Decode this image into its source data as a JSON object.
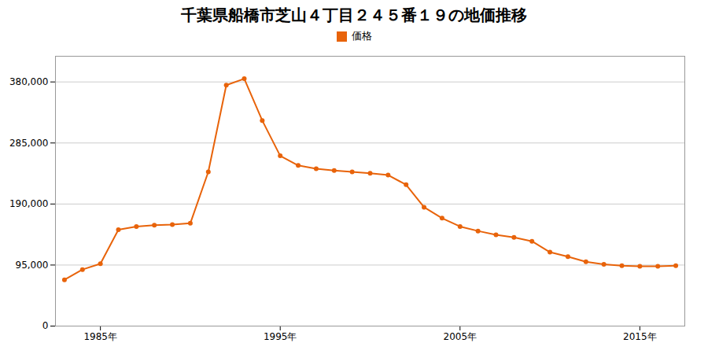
{
  "chart_data": {
    "type": "line",
    "title": "千葉県船橋市芝山４丁目２４５番１９の地価推移",
    "x": [
      1983,
      1984,
      1985,
      1986,
      1987,
      1988,
      1989,
      1990,
      1991,
      1992,
      1993,
      1994,
      1995,
      1996,
      1997,
      1998,
      1999,
      2000,
      2001,
      2002,
      2003,
      2004,
      2005,
      2006,
      2007,
      2008,
      2009,
      2010,
      2011,
      2012,
      2013,
      2014,
      2015,
      2016,
      2017
    ],
    "series": [
      {
        "name": "価格",
        "color": "#e8630a",
        "marker": "circle",
        "values": [
          72000,
          88000,
          97000,
          150000,
          155000,
          157000,
          158000,
          160000,
          240000,
          375000,
          385000,
          320000,
          265000,
          250000,
          245000,
          242000,
          240000,
          238000,
          235000,
          220000,
          185000,
          168000,
          155000,
          148000,
          142000,
          138000,
          132000,
          115000,
          108000,
          100000,
          96000,
          94000,
          93000,
          93000,
          94000
        ]
      }
    ],
    "xlim": [
      1982.5,
      2017.5
    ],
    "xticks": [
      {
        "value": 1985,
        "label": "1985年"
      },
      {
        "value": 1995,
        "label": "1995年"
      },
      {
        "value": 2005,
        "label": "2005年"
      },
      {
        "value": 2015,
        "label": "2015年"
      }
    ],
    "ylim": [
      0,
      420000
    ],
    "yticks": [
      0,
      {
        "value": 95000,
        "label": "95,000"
      },
      {
        "value": 190000,
        "label": "190,000"
      },
      {
        "value": 285000,
        "label": "285,000"
      },
      {
        "value": 380000,
        "label": "380,000"
      }
    ],
    "grid": true,
    "legend": "top"
  }
}
